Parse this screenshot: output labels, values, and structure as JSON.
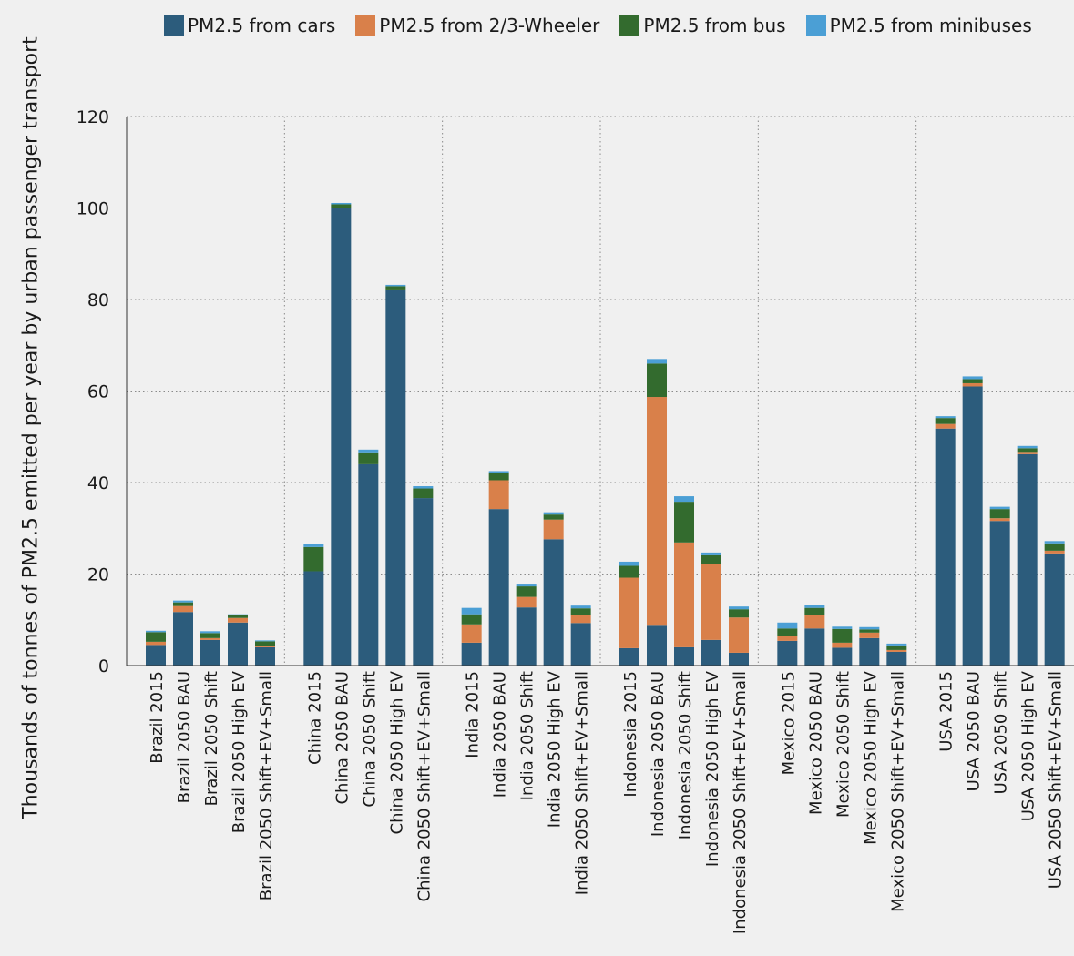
{
  "chart_data": {
    "type": "bar",
    "stacked": true,
    "grid": true,
    "legend_position": "top",
    "ylabel": "Thousands of tonnes of PM2.5 emitted per year by urban passenger transport",
    "ylim": [
      0,
      120
    ],
    "yticks": [
      0,
      20,
      40,
      60,
      80,
      100,
      120
    ],
    "groups": [
      "Brazil",
      "China",
      "India",
      "Indonesia",
      "Mexico",
      "USA"
    ],
    "categories": [
      "Brazil 2015",
      "Brazil 2050 BAU",
      "Brazil 2050 Shift",
      "Brazil 2050 High EV",
      "Brazil 2050 Shift+EV+Small",
      "China 2015",
      "China 2050 BAU",
      "China 2050 Shift",
      "China 2050 High EV",
      "China 2050 Shift+EV+Small",
      "India 2015",
      "India 2050 BAU",
      "India 2050 Shift",
      "India 2050 High EV",
      "India 2050 Shift+EV+Small",
      "Indonesia 2015",
      "Indonesia 2050 BAU",
      "Indonesia 2050 Shift",
      "Indonesia 2050 High EV",
      "Indonesia 2050 Shift+EV+Small",
      "Mexico 2015",
      "Mexico 2050 BAU",
      "Mexico 2050 Shift",
      "Mexico 2050 High EV",
      "Mexico 2050 Shift+EV+Small",
      "USA 2015",
      "USA 2050 BAU",
      "USA 2050 Shift",
      "USA 2050 High EV",
      "USA 2050 Shift+EV+Small"
    ],
    "series": [
      {
        "name": "PM2.5 from cars",
        "color": "#2c5c7c",
        "values": [
          4.5,
          11.7,
          5.6,
          9.4,
          4.0,
          20.6,
          100.0,
          44.0,
          82.2,
          36.6,
          5.0,
          34.2,
          12.7,
          27.6,
          9.3,
          3.8,
          8.7,
          4.0,
          5.6,
          2.8,
          5.4,
          8.1,
          3.9,
          6.0,
          3.0,
          51.8,
          61.0,
          31.6,
          46.2,
          24.5
        ]
      },
      {
        "name": "PM2.5 from 2/3-Wheeler",
        "color": "#d9804a",
        "values": [
          0.7,
          1.3,
          0.4,
          1.0,
          0.3,
          0.0,
          0.0,
          0.0,
          0.0,
          0.0,
          4.0,
          6.3,
          2.3,
          4.3,
          1.7,
          15.4,
          50.0,
          22.9,
          16.6,
          7.7,
          1.0,
          3.0,
          1.1,
          1.2,
          0.4,
          1.0,
          0.7,
          0.6,
          0.5,
          0.6
        ]
      },
      {
        "name": "PM2.5 from bus",
        "color": "#336b2e",
        "values": [
          2.1,
          0.8,
          1.1,
          0.6,
          1.0,
          5.3,
          0.8,
          2.6,
          0.7,
          2.1,
          2.2,
          1.5,
          2.3,
          1.1,
          1.5,
          2.6,
          7.3,
          8.9,
          1.9,
          1.8,
          1.7,
          1.5,
          3.0,
          0.7,
          1.0,
          1.3,
          0.9,
          2.0,
          0.8,
          1.6
        ]
      },
      {
        "name": "PM2.5 from minibuses",
        "color": "#4b9fd5",
        "values": [
          0.3,
          0.4,
          0.4,
          0.2,
          0.2,
          0.6,
          0.3,
          0.6,
          0.3,
          0.5,
          1.4,
          0.5,
          0.6,
          0.5,
          0.6,
          0.9,
          1.0,
          1.2,
          0.6,
          0.6,
          1.3,
          0.6,
          0.5,
          0.5,
          0.4,
          0.4,
          0.6,
          0.5,
          0.5,
          0.5
        ]
      }
    ]
  }
}
